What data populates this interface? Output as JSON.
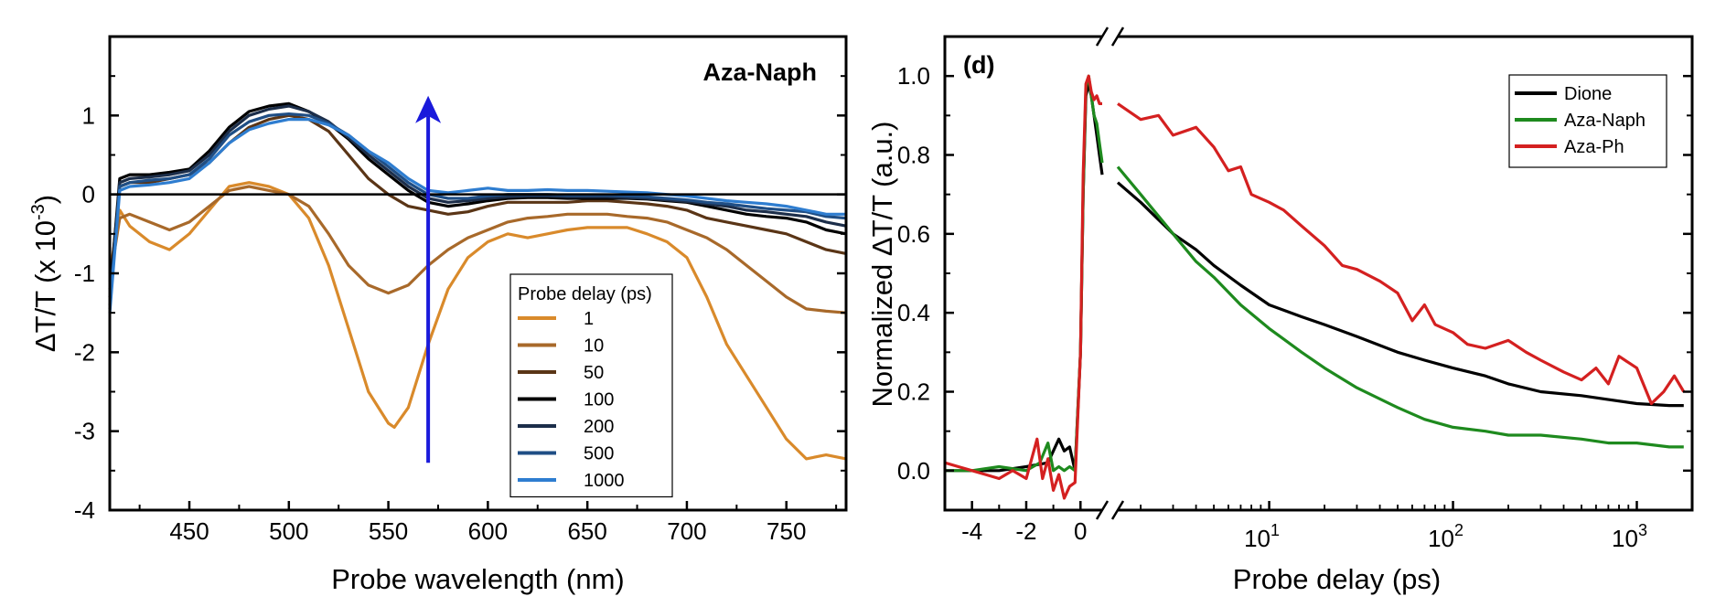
{
  "chart_data": [
    {
      "type": "line",
      "panel_title": "Aza-Naph",
      "xlabel": "Probe wavelength (nm)",
      "ylabel": "ΔT/T (x 10",
      "ylabel_exp": "-3",
      "ylabel_close": ")",
      "xlim": [
        410,
        780
      ],
      "ylim": [
        -4,
        2
      ],
      "xticks": [
        450,
        500,
        550,
        600,
        650,
        700,
        750
      ],
      "xtick_labels": [
        "450",
        "500",
        "550",
        "600",
        "650",
        "700",
        "750"
      ],
      "yticks": [
        -4,
        -3,
        -2,
        -1,
        0,
        1
      ],
      "ytick_labels": [
        "-4",
        "-3",
        "-2",
        "-1",
        "0",
        "1"
      ],
      "zero_line": 0,
      "legend_title": "Probe delay (ps)",
      "legend_position": "lower-middle",
      "annotation": "blue arrow at 570 nm pointing up from -3.4 to 1.2",
      "arrow": {
        "x": 570,
        "y_from": -3.4,
        "y_to": 1.25,
        "color": "#1a1adb"
      },
      "series": [
        {
          "name": "1",
          "color": "#d98a2b",
          "x": [
            410,
            415,
            420,
            430,
            440,
            450,
            460,
            470,
            480,
            490,
            500,
            510,
            520,
            530,
            540,
            550,
            553,
            560,
            570,
            580,
            590,
            600,
            610,
            620,
            630,
            640,
            650,
            660,
            670,
            680,
            690,
            700,
            710,
            720,
            730,
            740,
            750,
            760,
            770,
            780
          ],
          "y": [
            -1.0,
            -0.2,
            -0.4,
            -0.6,
            -0.7,
            -0.5,
            -0.2,
            0.1,
            0.15,
            0.1,
            0.0,
            -0.3,
            -0.9,
            -1.7,
            -2.5,
            -2.9,
            -2.95,
            -2.7,
            -1.9,
            -1.2,
            -0.8,
            -0.6,
            -0.5,
            -0.55,
            -0.5,
            -0.45,
            -0.42,
            -0.42,
            -0.42,
            -0.5,
            -0.6,
            -0.8,
            -1.3,
            -1.9,
            -2.3,
            -2.7,
            -3.1,
            -3.35,
            -3.3,
            -3.35
          ]
        },
        {
          "name": "10",
          "color": "#a8692a",
          "x": [
            410,
            415,
            420,
            430,
            440,
            450,
            460,
            470,
            480,
            490,
            500,
            510,
            520,
            530,
            540,
            550,
            560,
            570,
            580,
            590,
            600,
            610,
            620,
            630,
            640,
            650,
            660,
            670,
            680,
            690,
            700,
            710,
            720,
            730,
            740,
            750,
            760,
            770,
            780
          ],
          "y": [
            -1.1,
            -0.3,
            -0.25,
            -0.35,
            -0.45,
            -0.35,
            -0.15,
            0.05,
            0.1,
            0.05,
            0.0,
            -0.15,
            -0.5,
            -0.9,
            -1.15,
            -1.25,
            -1.15,
            -0.9,
            -0.7,
            -0.55,
            -0.45,
            -0.35,
            -0.3,
            -0.28,
            -0.25,
            -0.25,
            -0.25,
            -0.28,
            -0.3,
            -0.35,
            -0.45,
            -0.55,
            -0.7,
            -0.9,
            -1.1,
            -1.3,
            -1.45,
            -1.48,
            -1.5
          ]
        },
        {
          "name": "50",
          "color": "#5a3516",
          "x": [
            410,
            415,
            420,
            430,
            440,
            450,
            460,
            470,
            480,
            490,
            500,
            510,
            520,
            530,
            540,
            550,
            560,
            570,
            580,
            590,
            600,
            610,
            620,
            630,
            640,
            650,
            660,
            670,
            680,
            690,
            700,
            710,
            720,
            730,
            740,
            750,
            760,
            770,
            780
          ],
          "y": [
            -1.2,
            0.1,
            0.15,
            0.15,
            0.2,
            0.25,
            0.4,
            0.65,
            0.85,
            0.95,
            1.0,
            0.95,
            0.8,
            0.5,
            0.2,
            0.0,
            -0.15,
            -0.2,
            -0.25,
            -0.22,
            -0.15,
            -0.1,
            -0.1,
            -0.1,
            -0.1,
            -0.08,
            -0.08,
            -0.1,
            -0.12,
            -0.15,
            -0.2,
            -0.3,
            -0.35,
            -0.4,
            -0.45,
            -0.5,
            -0.6,
            -0.7,
            -0.75
          ]
        },
        {
          "name": "100",
          "color": "#000000",
          "x": [
            410,
            415,
            420,
            430,
            440,
            450,
            460,
            470,
            480,
            490,
            500,
            510,
            520,
            530,
            540,
            550,
            560,
            570,
            580,
            590,
            600,
            610,
            620,
            630,
            640,
            650,
            660,
            670,
            680,
            690,
            700,
            710,
            720,
            730,
            740,
            750,
            760,
            770,
            780
          ],
          "y": [
            -1.3,
            0.2,
            0.25,
            0.25,
            0.28,
            0.32,
            0.55,
            0.85,
            1.05,
            1.12,
            1.15,
            1.05,
            0.9,
            0.7,
            0.45,
            0.25,
            0.05,
            -0.1,
            -0.15,
            -0.12,
            -0.08,
            -0.05,
            -0.04,
            -0.04,
            -0.05,
            -0.05,
            -0.05,
            -0.05,
            -0.06,
            -0.08,
            -0.1,
            -0.15,
            -0.2,
            -0.25,
            -0.28,
            -0.3,
            -0.35,
            -0.45,
            -0.5
          ]
        },
        {
          "name": "200",
          "color": "#1c2e4a",
          "x": [
            410,
            415,
            420,
            430,
            440,
            450,
            460,
            470,
            480,
            490,
            500,
            510,
            520,
            530,
            540,
            550,
            560,
            570,
            580,
            590,
            600,
            610,
            620,
            630,
            640,
            650,
            660,
            670,
            680,
            690,
            700,
            710,
            720,
            730,
            740,
            750,
            760,
            770,
            780
          ],
          "y": [
            -1.4,
            0.15,
            0.2,
            0.22,
            0.25,
            0.3,
            0.5,
            0.8,
            1.0,
            1.08,
            1.12,
            1.05,
            0.92,
            0.72,
            0.5,
            0.3,
            0.1,
            -0.05,
            -0.1,
            -0.08,
            -0.05,
            -0.03,
            -0.02,
            -0.02,
            -0.03,
            -0.03,
            -0.03,
            -0.04,
            -0.05,
            -0.07,
            -0.09,
            -0.12,
            -0.15,
            -0.2,
            -0.22,
            -0.25,
            -0.28,
            -0.35,
            -0.4
          ]
        },
        {
          "name": "500",
          "color": "#1f4e85",
          "x": [
            410,
            415,
            420,
            430,
            440,
            450,
            460,
            470,
            480,
            490,
            500,
            510,
            520,
            530,
            540,
            550,
            560,
            570,
            580,
            590,
            600,
            610,
            620,
            630,
            640,
            650,
            660,
            670,
            680,
            690,
            700,
            710,
            720,
            730,
            740,
            750,
            760,
            770,
            780
          ],
          "y": [
            -1.45,
            0.1,
            0.15,
            0.18,
            0.2,
            0.25,
            0.45,
            0.75,
            0.92,
            1.0,
            1.02,
            1.0,
            0.9,
            0.75,
            0.55,
            0.35,
            0.15,
            0.0,
            -0.05,
            -0.05,
            -0.02,
            0.0,
            0.0,
            0.0,
            -0.01,
            -0.01,
            -0.01,
            -0.02,
            -0.03,
            -0.05,
            -0.07,
            -0.1,
            -0.12,
            -0.15,
            -0.18,
            -0.2,
            -0.22,
            -0.28,
            -0.3
          ]
        },
        {
          "name": "1000",
          "color": "#2e7dd0",
          "x": [
            410,
            415,
            420,
            430,
            440,
            450,
            460,
            470,
            480,
            490,
            500,
            510,
            520,
            530,
            540,
            550,
            560,
            570,
            580,
            590,
            600,
            610,
            620,
            630,
            640,
            650,
            660,
            670,
            680,
            690,
            700,
            710,
            720,
            730,
            740,
            750,
            760,
            770,
            780
          ],
          "y": [
            -1.5,
            0.05,
            0.1,
            0.12,
            0.15,
            0.2,
            0.4,
            0.65,
            0.82,
            0.9,
            0.95,
            0.95,
            0.88,
            0.75,
            0.55,
            0.4,
            0.2,
            0.05,
            0.02,
            0.05,
            0.08,
            0.05,
            0.05,
            0.06,
            0.05,
            0.05,
            0.04,
            0.03,
            0.02,
            0.0,
            -0.02,
            -0.05,
            -0.08,
            -0.1,
            -0.12,
            -0.15,
            -0.2,
            -0.25,
            -0.25
          ]
        }
      ]
    },
    {
      "type": "line",
      "panel_label": "(d)",
      "xlabel": "Probe delay (ps)",
      "ylabel": "Normalized ΔT/T (a.u.)",
      "x_axis": "broken: linear from -5 to 0.8 ps, then logarithmic from 1.5 to 2000 ps",
      "xlim_linear": [
        -5,
        0.8
      ],
      "xlim_log": [
        1.5,
        2000
      ],
      "ylim": [
        -0.1,
        1.1
      ],
      "xticks_linear": [
        -4,
        -2,
        0
      ],
      "xtick_labels_linear": [
        "-4",
        "-2",
        "0"
      ],
      "xticks_log": [
        10,
        100,
        1000
      ],
      "xtick_labels_log": [
        "10",
        "10",
        "10"
      ],
      "xtick_exponents_log": [
        "1",
        "2",
        "3"
      ],
      "yticks": [
        0.0,
        0.2,
        0.4,
        0.6,
        0.8,
        1.0
      ],
      "ytick_labels": [
        "0.0",
        "0.2",
        "0.4",
        "0.6",
        "0.8",
        "1.0"
      ],
      "legend_position": "top-right",
      "series": [
        {
          "name": "Dione",
          "color": "#000000",
          "x_linear": [
            -5,
            -4,
            -3,
            -2,
            -1.2,
            -0.8,
            -0.6,
            -0.4,
            -0.2,
            0,
            0.1,
            0.2,
            0.3,
            0.4,
            0.5,
            0.6,
            0.7,
            0.8
          ],
          "y_linear": [
            0.0,
            0.0,
            0.0,
            0.01,
            0.02,
            0.08,
            0.05,
            0.06,
            0.0,
            0.3,
            0.7,
            0.95,
            0.98,
            0.95,
            0.9,
            0.85,
            0.8,
            0.75
          ],
          "x_log": [
            1.5,
            2,
            3,
            4,
            5,
            7,
            10,
            15,
            20,
            30,
            50,
            70,
            100,
            150,
            200,
            300,
            500,
            700,
            1000,
            1500,
            1800
          ],
          "y_log": [
            0.73,
            0.68,
            0.6,
            0.56,
            0.52,
            0.47,
            0.42,
            0.39,
            0.37,
            0.34,
            0.3,
            0.28,
            0.26,
            0.24,
            0.22,
            0.2,
            0.19,
            0.18,
            0.17,
            0.165,
            0.165
          ]
        },
        {
          "name": "Aza-Naph",
          "color": "#1e8a1e",
          "x_linear": [
            -5,
            -4,
            -3,
            -2,
            -1.5,
            -1.2,
            -1,
            -0.8,
            -0.6,
            -0.4,
            -0.2,
            0,
            0.1,
            0.2,
            0.3,
            0.4,
            0.5,
            0.6,
            0.7,
            0.8
          ],
          "y_linear": [
            0.0,
            0.0,
            0.01,
            0.0,
            0.02,
            0.07,
            0.0,
            0.01,
            0.0,
            0.01,
            0.0,
            0.3,
            0.7,
            0.97,
            1.0,
            0.95,
            0.9,
            0.88,
            0.83,
            0.78
          ],
          "x_log": [
            1.5,
            2,
            3,
            4,
            5,
            7,
            10,
            15,
            20,
            30,
            50,
            70,
            100,
            150,
            200,
            300,
            500,
            700,
            1000,
            1500,
            1800
          ],
          "y_log": [
            0.77,
            0.7,
            0.6,
            0.53,
            0.49,
            0.42,
            0.36,
            0.3,
            0.26,
            0.21,
            0.16,
            0.13,
            0.11,
            0.1,
            0.09,
            0.09,
            0.08,
            0.07,
            0.07,
            0.06,
            0.06
          ]
        },
        {
          "name": "Aza-Ph",
          "color": "#d42020",
          "x_linear": [
            -5,
            -4.5,
            -4,
            -3.5,
            -3,
            -2.5,
            -2,
            -1.6,
            -1.4,
            -1.2,
            -1,
            -0.8,
            -0.6,
            -0.4,
            -0.2,
            0,
            0.1,
            0.2,
            0.3,
            0.4,
            0.5,
            0.6,
            0.7,
            0.8
          ],
          "y_linear": [
            0.02,
            0.01,
            0.0,
            -0.01,
            -0.02,
            0.0,
            -0.02,
            0.08,
            -0.02,
            0.03,
            -0.05,
            -0.01,
            -0.07,
            -0.04,
            -0.03,
            0.3,
            0.75,
            0.98,
            1.0,
            0.96,
            0.94,
            0.95,
            0.93,
            0.93
          ],
          "x_log": [
            1.5,
            2,
            2.5,
            3,
            4,
            5,
            6,
            7,
            8,
            10,
            12,
            15,
            20,
            25,
            30,
            40,
            50,
            60,
            70,
            80,
            100,
            120,
            150,
            200,
            250,
            300,
            400,
            500,
            600,
            700,
            800,
            1000,
            1200,
            1400,
            1600,
            1800
          ],
          "y_log": [
            0.93,
            0.89,
            0.9,
            0.85,
            0.87,
            0.82,
            0.76,
            0.77,
            0.7,
            0.68,
            0.66,
            0.62,
            0.57,
            0.52,
            0.51,
            0.48,
            0.45,
            0.38,
            0.42,
            0.37,
            0.35,
            0.32,
            0.31,
            0.33,
            0.3,
            0.28,
            0.25,
            0.23,
            0.26,
            0.22,
            0.29,
            0.26,
            0.17,
            0.2,
            0.24,
            0.2
          ]
        }
      ]
    }
  ]
}
